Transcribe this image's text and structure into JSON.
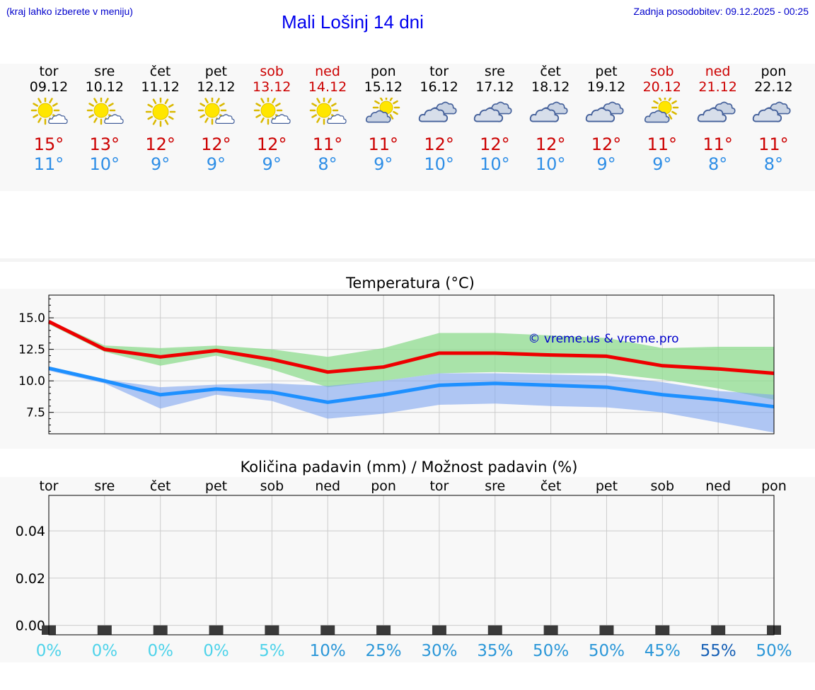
{
  "header": {
    "hint": "(kraj lahko izberete v meniju)",
    "title": "Mali Lošinj 14 dni",
    "updated": "Zadnja posodobitev: 09.12.2025 - 00:25"
  },
  "days": [
    {
      "name": "tor",
      "date": "09.12",
      "weekend": false,
      "icon": "sun-partly-cloudy-icon",
      "max": "15°",
      "min": "11°"
    },
    {
      "name": "sre",
      "date": "10.12",
      "weekend": false,
      "icon": "sun-partly-cloudy-icon",
      "max": "13°",
      "min": "10°"
    },
    {
      "name": "čet",
      "date": "11.12",
      "weekend": false,
      "icon": "sun-icon",
      "max": "12°",
      "min": "9°"
    },
    {
      "name": "pet",
      "date": "12.12",
      "weekend": false,
      "icon": "sun-partly-cloudy-icon",
      "max": "12°",
      "min": "9°"
    },
    {
      "name": "sob",
      "date": "13.12",
      "weekend": true,
      "icon": "sun-partly-cloudy-icon",
      "max": "12°",
      "min": "9°"
    },
    {
      "name": "ned",
      "date": "14.12",
      "weekend": true,
      "icon": "sun-partly-cloudy-icon",
      "max": "11°",
      "min": "8°"
    },
    {
      "name": "pon",
      "date": "15.12",
      "weekend": false,
      "icon": "cloud-sun-icon",
      "max": "11°",
      "min": "9°"
    },
    {
      "name": "tor",
      "date": "16.12",
      "weekend": false,
      "icon": "cloudy-icon",
      "max": "12°",
      "min": "10°"
    },
    {
      "name": "sre",
      "date": "17.12",
      "weekend": false,
      "icon": "cloudy-icon",
      "max": "12°",
      "min": "10°"
    },
    {
      "name": "čet",
      "date": "18.12",
      "weekend": false,
      "icon": "cloudy-icon",
      "max": "12°",
      "min": "10°"
    },
    {
      "name": "pet",
      "date": "19.12",
      "weekend": false,
      "icon": "cloudy-icon",
      "max": "12°",
      "min": "9°"
    },
    {
      "name": "sob",
      "date": "20.12",
      "weekend": true,
      "icon": "cloud-sun-icon",
      "max": "11°",
      "min": "9°"
    },
    {
      "name": "ned",
      "date": "21.12",
      "weekend": true,
      "icon": "cloudy-icon",
      "max": "11°",
      "min": "8°"
    },
    {
      "name": "pon",
      "date": "22.12",
      "weekend": false,
      "icon": "cloudy-icon",
      "max": "11°",
      "min": "8°"
    }
  ],
  "colors": {
    "max": "#ee0000",
    "min": "#1e90ff",
    "band_max": "#8fdc8f",
    "band_min": "#7fa5f0"
  },
  "chart_data": [
    {
      "type": "line",
      "title": "Temperatura (°C)",
      "watermark": "© vreme.us & vreme.pro",
      "x": [
        0,
        1,
        2,
        3,
        4,
        5,
        6,
        7,
        8,
        9,
        10,
        11,
        12,
        13
      ],
      "ylim": [
        5.8,
        16.8
      ],
      "yticks": [
        7.5,
        10.0,
        12.5,
        15.0
      ],
      "yticklabels": [
        "7.5",
        "10.0",
        "12.5",
        "15.0"
      ],
      "series": [
        {
          "name": "max",
          "values": [
            14.7,
            12.5,
            11.9,
            12.4,
            11.7,
            10.7,
            11.1,
            12.2,
            12.2,
            12.05,
            11.95,
            11.2,
            10.95,
            10.6
          ]
        },
        {
          "name": "min",
          "values": [
            11.0,
            10.0,
            8.9,
            9.35,
            9.1,
            8.3,
            8.9,
            9.65,
            9.8,
            9.65,
            9.5,
            8.9,
            8.5,
            7.95
          ]
        }
      ],
      "bands": [
        {
          "name": "max-range",
          "low": [
            14.5,
            12.3,
            11.2,
            12.0,
            10.9,
            9.5,
            10.0,
            10.6,
            10.7,
            10.6,
            10.6,
            10.1,
            9.4,
            8.5
          ],
          "high": [
            14.8,
            12.8,
            12.6,
            12.8,
            12.5,
            11.9,
            12.6,
            13.8,
            13.8,
            13.6,
            13.4,
            12.6,
            12.7,
            12.7
          ]
        },
        {
          "name": "min-range",
          "low": [
            10.8,
            9.8,
            7.8,
            8.9,
            8.4,
            7.0,
            7.4,
            8.1,
            8.2,
            8.0,
            7.9,
            7.5,
            6.7,
            5.9
          ],
          "high": [
            11.1,
            10.1,
            9.5,
            9.7,
            9.8,
            9.6,
            10.0,
            10.6,
            10.6,
            10.5,
            10.4,
            9.9,
            9.2,
            8.9
          ]
        }
      ]
    },
    {
      "type": "bar",
      "title": "Količina padavin (mm) / Možnost padavin (%)",
      "categories": [
        "tor",
        "sre",
        "čet",
        "pet",
        "sob",
        "ned",
        "pon",
        "tor",
        "sre",
        "čet",
        "pet",
        "sob",
        "ned",
        "pon"
      ],
      "values": [
        0,
        0,
        0,
        0,
        0,
        0,
        0,
        0,
        0,
        0,
        0,
        0,
        0,
        0
      ],
      "ylim": [
        -0.004,
        0.055
      ],
      "yticks": [
        0.0,
        0.02,
        0.04
      ],
      "yticklabels": [
        "0.00",
        "0.02",
        "0.04"
      ],
      "probability": [
        "0%",
        "0%",
        "0%",
        "0%",
        "5%",
        "10%",
        "25%",
        "30%",
        "35%",
        "50%",
        "50%",
        "45%",
        "55%",
        "50%"
      ],
      "probability_values": [
        0,
        0,
        0,
        0,
        5,
        10,
        25,
        30,
        35,
        50,
        50,
        45,
        55,
        50
      ]
    }
  ]
}
